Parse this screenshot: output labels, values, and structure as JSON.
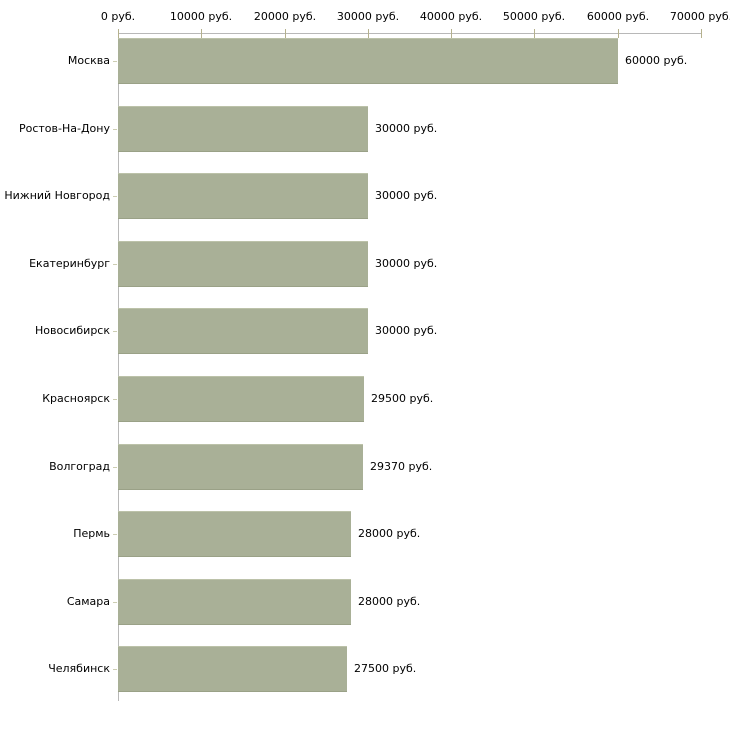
{
  "chart_data": {
    "type": "bar",
    "orientation": "horizontal",
    "title": "",
    "xlabel": "",
    "ylabel": "",
    "grid": false,
    "legend": null,
    "unit": "руб.",
    "categories": [
      "Москва",
      "Ростов-На-Дону",
      "Нижний Новгород",
      "Екатеринбург",
      "Новосибирск",
      "Красноярск",
      "Волгоград",
      "Пермь",
      "Самара",
      "Челябинск"
    ],
    "values": [
      60000,
      30000,
      30000,
      30000,
      30000,
      29500,
      29370,
      28000,
      28000,
      27500
    ],
    "value_labels": [
      "60000 руб.",
      "30000 руб.",
      "30000 руб.",
      "30000 руб.",
      "30000 руб.",
      "29500 руб.",
      "29370 руб.",
      "28000 руб.",
      "28000 руб.",
      "27500 руб."
    ],
    "x_ticks": [
      0,
      10000,
      20000,
      30000,
      40000,
      50000,
      60000,
      70000
    ],
    "x_tick_labels": [
      "0 руб.",
      "10000 руб.",
      "20000 руб.",
      "30000 руб.",
      "40000 руб.",
      "50000 руб.",
      "60000 руб.",
      "70000 руб."
    ],
    "xlim": [
      0,
      70000
    ],
    "colors": {
      "background": "#ffffff",
      "bar": "#a9b097",
      "bar_edge_light": "#bcc2a9",
      "bar_edge_dark": "#9aa187",
      "axis_line": "#b8b8b8",
      "tick": "#b5b18d",
      "category_tick": "#cccdb2",
      "text": "#000000"
    }
  }
}
